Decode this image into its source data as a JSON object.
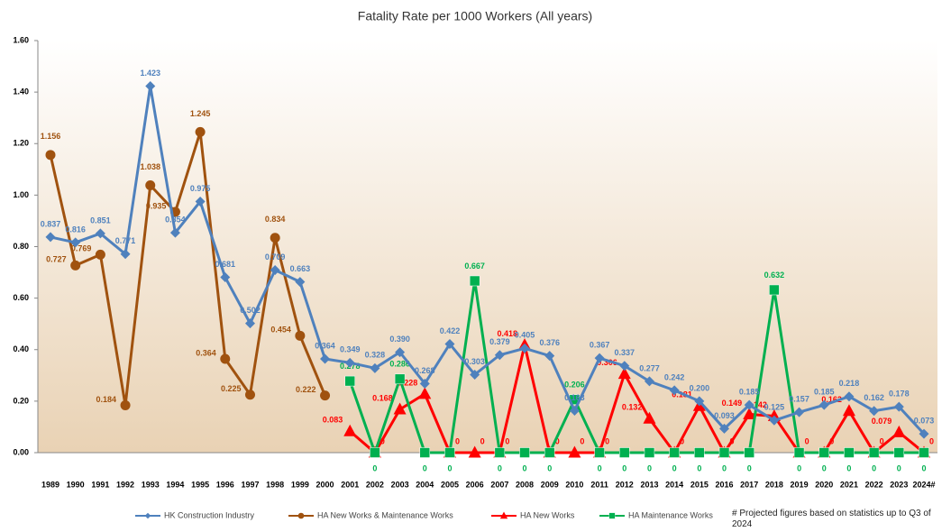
{
  "chart_data": {
    "type": "line",
    "title": "Fatality Rate per 1000 Workers (All years)",
    "note": "# Projected figures based on statistics up to Q3 of 2024",
    "categories": [
      "1989",
      "1990",
      "1991",
      "1992",
      "1993",
      "1994",
      "1995",
      "1996",
      "1997",
      "1998",
      "1999",
      "2000",
      "2001",
      "2002",
      "2003",
      "2004",
      "2005",
      "2006",
      "2007",
      "2008",
      "2009",
      "2010",
      "2011",
      "2012",
      "2013",
      "2014",
      "2015",
      "2016",
      "2017",
      "2018",
      "2019",
      "2020",
      "2021",
      "2022",
      "2023",
      "2024#"
    ],
    "ylim": [
      0,
      1.6
    ],
    "yticks": [
      {
        "value": 0,
        "label": "0.00"
      },
      {
        "value": 0.2,
        "label": "0.20"
      },
      {
        "value": 0.4,
        "label": "0.40"
      },
      {
        "value": 0.6,
        "label": "0.60"
      },
      {
        "value": 0.8,
        "label": "0.80"
      },
      {
        "value": 1.0,
        "label": "1.00"
      },
      {
        "value": 1.2,
        "label": "1.20"
      },
      {
        "value": 1.4,
        "label": "1.40"
      },
      {
        "value": 1.6,
        "label": "1.60"
      }
    ],
    "legend": "bottom",
    "series": [
      {
        "name": "HK Construction Industry",
        "color": "#4f81bd",
        "marker": "diamond",
        "values": [
          0.837,
          0.816,
          0.851,
          0.771,
          1.423,
          0.854,
          0.975,
          0.681,
          0.502,
          0.709,
          0.663,
          0.364,
          0.349,
          0.328,
          0.39,
          0.268,
          0.422,
          0.303,
          0.379,
          0.405,
          0.376,
          0.163,
          0.367,
          0.337,
          0.277,
          0.242,
          0.2,
          0.093,
          0.185,
          0.125,
          0.157,
          0.185,
          0.218,
          0.162,
          0.178,
          0.073
        ],
        "value_labels": [
          "0.837",
          "0.816",
          "0.851",
          "0.771",
          "1.423",
          "0.854",
          "0.975",
          "0.681",
          "0.502",
          "0.709",
          "0.663",
          "0.364",
          "0.349",
          "0.328",
          "0.390",
          "0.268",
          "0.422",
          "0.303",
          "0.379",
          "0.405",
          "0.376",
          "0.163",
          "0.367",
          "0.337",
          "0.277",
          "0.242",
          "0.200",
          "0.093",
          "0.185",
          "0.125",
          "0.157",
          "0.185",
          "0.218",
          "0.162",
          "0.178",
          "0.073"
        ]
      },
      {
        "name": "HA New Works & Maintenance Works",
        "color": "#a0520f",
        "marker": "circle",
        "values": [
          1.156,
          0.727,
          0.769,
          0.184,
          1.038,
          0.935,
          1.245,
          0.364,
          0.225,
          0.834,
          0.454,
          0.222,
          null,
          null,
          null,
          null,
          null,
          null,
          null,
          null,
          null,
          null,
          null,
          null,
          null,
          null,
          null,
          null,
          null,
          null,
          null,
          null,
          null,
          null,
          null,
          null
        ],
        "value_labels": [
          "1.156",
          "0.727",
          "0.769",
          "0.184",
          "1.038",
          "0.935",
          "1.245",
          "0.364",
          "0.225",
          "0.834",
          "0.454",
          "0.222",
          null,
          null,
          null,
          null,
          null,
          null,
          null,
          null,
          null,
          null,
          null,
          null,
          null,
          null,
          null,
          null,
          null,
          null,
          null,
          null,
          null,
          null,
          null,
          null
        ]
      },
      {
        "name": "HA New Works",
        "color": "#ff0000",
        "marker": "triangle",
        "values": [
          null,
          null,
          null,
          null,
          null,
          null,
          null,
          null,
          null,
          null,
          null,
          null,
          0.083,
          0,
          0.168,
          0.228,
          0,
          0,
          0,
          0.418,
          0,
          0,
          0,
          0.306,
          0.132,
          0,
          0.181,
          0,
          0.149,
          0.142,
          0,
          0,
          0.162,
          0,
          0.079,
          0
        ],
        "value_labels": [
          null,
          null,
          null,
          null,
          null,
          null,
          null,
          null,
          null,
          null,
          null,
          null,
          "0.083",
          "0",
          "0.168",
          "0.228",
          "0",
          "0",
          "0",
          "0.418",
          "0",
          "0",
          "0",
          "0.306",
          "0.132",
          "0",
          "0.181",
          "0",
          "0.149",
          "0.142",
          "0",
          "0",
          "0.162",
          "0",
          "0.079",
          "0"
        ]
      },
      {
        "name": "HA Maintenance Works",
        "color": "#00b050",
        "marker": "square",
        "values": [
          null,
          null,
          null,
          null,
          null,
          null,
          null,
          null,
          null,
          null,
          null,
          null,
          0.278,
          0,
          0.286,
          0,
          0,
          0.667,
          0,
          0,
          0,
          0.206,
          0,
          0,
          0,
          0,
          0,
          0,
          0,
          0.632,
          0,
          0,
          0,
          0,
          0,
          0
        ],
        "value_labels": [
          null,
          null,
          null,
          null,
          null,
          null,
          null,
          null,
          null,
          null,
          null,
          null,
          "0.278",
          "0",
          "0.286",
          "0",
          "0",
          "0.667",
          "0",
          "0",
          "0",
          "0.206",
          "0",
          "0",
          "0",
          "0",
          "0",
          "0",
          "0",
          "0.632",
          "0",
          "0",
          "0",
          "0",
          "0",
          "0"
        ]
      }
    ]
  }
}
